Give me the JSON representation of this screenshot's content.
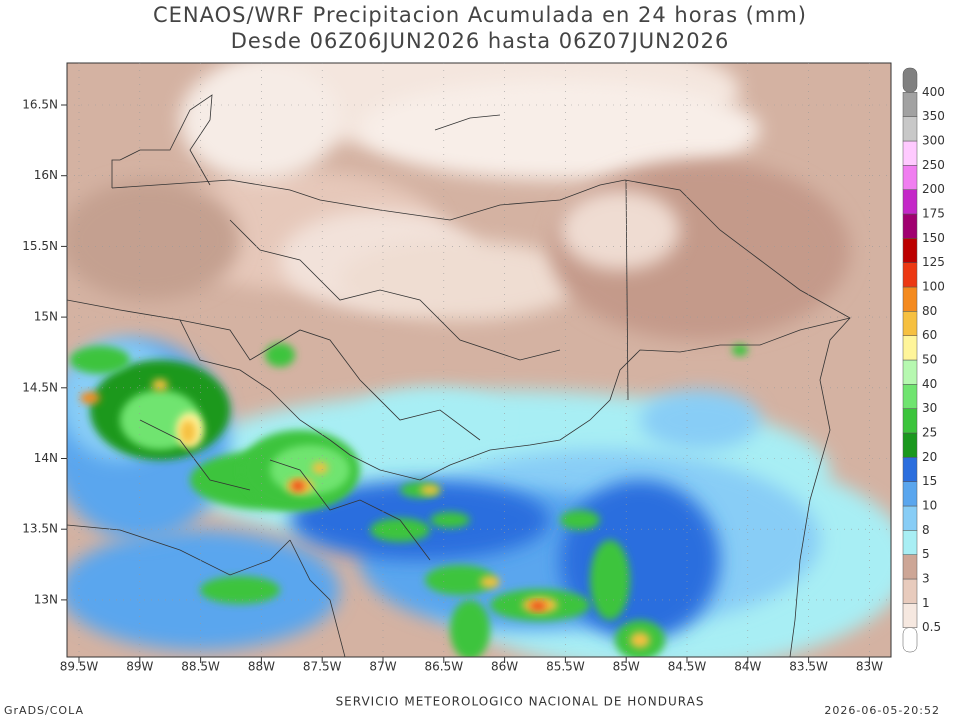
{
  "header": {
    "title": "CENAOS/WRF Precipitacion Acumulada en 24 horas (mm)",
    "subtitle": "Desde 06Z06JUN2026 hasta 06Z07JUN2026"
  },
  "map": {
    "lat_labels": [
      "16.5N",
      "16N",
      "15.5N",
      "15N",
      "14.5N",
      "14N",
      "13.5N",
      "13N"
    ],
    "lon_labels": [
      "89.5W",
      "89W",
      "88.5W",
      "88W",
      "87.5W",
      "87W",
      "86.5W",
      "86W",
      "85.5W",
      "85W",
      "84.5W",
      "84W",
      "83.5W",
      "83W"
    ]
  },
  "colorbar": {
    "labels": [
      0.5,
      1,
      3,
      5,
      8,
      10,
      15,
      20,
      25,
      30,
      40,
      50,
      60,
      80,
      100,
      125,
      150,
      175,
      200,
      250,
      300,
      350,
      400
    ],
    "colors": [
      "#ffffff",
      "#f6e8e0",
      "#e8cbbd",
      "#cda696",
      "#a8eef4",
      "#88cdf6",
      "#5aa6ee",
      "#2b6ede",
      "#1a981e",
      "#3cc43c",
      "#70e470",
      "#b6f8b0",
      "#fff59a",
      "#f6c040",
      "#f48a1e",
      "#ec3812",
      "#bc0000",
      "#a00070",
      "#c428c8",
      "#f07ef0",
      "#ffcaff",
      "#c8c8c8",
      "#a2a2a2",
      "#808080"
    ]
  },
  "footer": {
    "left": "GrADS/COLA",
    "center": "SERVICIO METEOROLOGICO NACIONAL DE HONDURAS",
    "right": "2026-06-05-20:52"
  }
}
